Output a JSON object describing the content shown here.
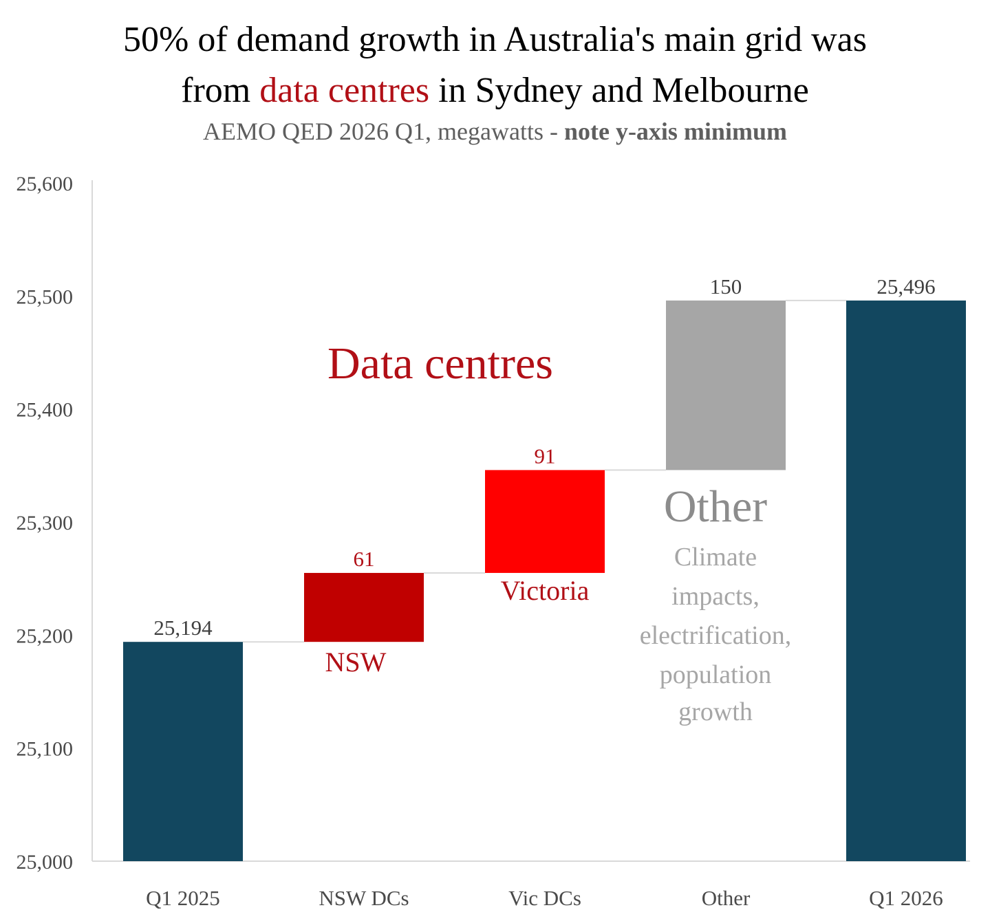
{
  "title": {
    "line1": "50% of demand growth in Australia's main grid was",
    "line2_pre": "from ",
    "line2_highlight": "data centres",
    "line2_post": " in Sydney and Melbourne"
  },
  "subtitle": {
    "regular": "AEMO QED 2026 Q1, megawatts - ",
    "bold": "note y-axis minimum"
  },
  "chart_data": {
    "type": "bar",
    "subtype": "waterfall",
    "categories": [
      "Q1 2025",
      "NSW DCs",
      "Vic DCs",
      "Other",
      "Q1 2026"
    ],
    "values": [
      25194,
      61,
      91,
      150,
      25496
    ],
    "value_labels": [
      "25,194",
      "61",
      "91",
      "150",
      "25,496"
    ],
    "bar_kinds": [
      "total",
      "increase",
      "increase",
      "increase",
      "total"
    ],
    "ylim": [
      25000,
      25600
    ],
    "yticks": [
      25000,
      25100,
      25200,
      25300,
      25400,
      25500,
      25600
    ],
    "ytick_labels": [
      "25,000",
      "25,100",
      "25,200",
      "25,300",
      "25,400",
      "25,500",
      "25,600"
    ],
    "colors": {
      "total": "#12475f",
      "nsw": "#c00000",
      "vic": "#ff0000",
      "other": "#a6a6a6",
      "connector": "#d9d9d9",
      "red_text": "#b10f16",
      "grey_text": "#8c8c8c"
    },
    "annotations": {
      "data_centres": "Data centres",
      "nsw": "NSW",
      "victoria": "Victoria",
      "other": "Other",
      "other_detail": [
        "Climate",
        "impacts,",
        "electrification,",
        "population",
        "growth"
      ]
    }
  }
}
